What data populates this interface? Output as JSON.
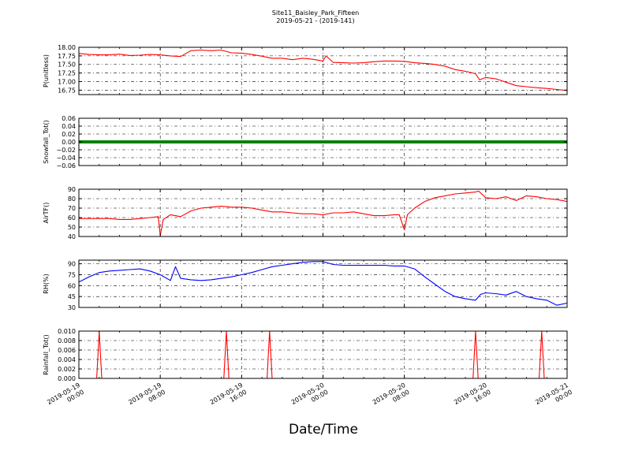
{
  "header": {
    "title": "Site11_Baisley_Park_Fifteen",
    "subtitle": "2019-05-21 - (2019-141)"
  },
  "xaxis": {
    "label": "Date/Time",
    "ticks": [
      [
        "2019-05-19",
        "00:00"
      ],
      [
        "2019-05-19",
        "08:00"
      ],
      [
        "2019-05-19",
        "16:00"
      ],
      [
        "2019-05-20",
        "00:00"
      ],
      [
        "2019-05-20",
        "08:00"
      ],
      [
        "2019-05-20",
        "16:00"
      ],
      [
        "2019-05-21",
        "00:00"
      ]
    ]
  },
  "chart_data": [
    {
      "type": "line",
      "ylabel": "P(unitless)",
      "color": "#ff0000",
      "ylim": [
        16.62,
        18.0
      ],
      "yticks": [
        "18.00",
        "17.75",
        "17.50",
        "17.25",
        "17.00",
        "16.75"
      ],
      "ytick_values": [
        18.0,
        17.75,
        17.5,
        17.25,
        17.0,
        16.75
      ],
      "grid": true,
      "x_hours": [
        0,
        1,
        2,
        3,
        4,
        5,
        6,
        7,
        8,
        9,
        10,
        11,
        12,
        13,
        14,
        15,
        16,
        17,
        18,
        19,
        20,
        21,
        22,
        23,
        24,
        24.3,
        25,
        26,
        27,
        28,
        29,
        30,
        31,
        32,
        33,
        34,
        35,
        36,
        37,
        38,
        39,
        39.4,
        40,
        41,
        42,
        43,
        44,
        45,
        46,
        47,
        48
      ],
      "values": [
        17.82,
        17.79,
        17.78,
        17.78,
        17.8,
        17.76,
        17.77,
        17.79,
        17.78,
        17.75,
        17.73,
        17.9,
        17.92,
        17.9,
        17.92,
        17.84,
        17.83,
        17.79,
        17.74,
        17.68,
        17.68,
        17.64,
        17.68,
        17.65,
        17.6,
        17.75,
        17.56,
        17.55,
        17.54,
        17.55,
        17.58,
        17.6,
        17.6,
        17.59,
        17.55,
        17.53,
        17.5,
        17.45,
        17.35,
        17.3,
        17.23,
        17.05,
        17.12,
        17.08,
        16.98,
        16.88,
        16.85,
        16.82,
        16.8,
        16.77,
        16.74
      ]
    },
    {
      "type": "line",
      "ylabel": "Snowfall_Tot()",
      "color": "#008000",
      "ylim": [
        -0.06,
        0.06
      ],
      "yticks": [
        "0.06",
        "0.04",
        "0.02",
        "0.00",
        "−0.02",
        "−0.04",
        "−0.06"
      ],
      "ytick_values": [
        0.06,
        0.04,
        0.02,
        0.0,
        -0.02,
        -0.04,
        -0.06
      ],
      "grid": true,
      "x_hours": [
        0,
        48
      ],
      "values": [
        0,
        0
      ]
    },
    {
      "type": "line",
      "ylabel": "AirTF()",
      "color": "#ff0000",
      "ylim": [
        40,
        90
      ],
      "yticks": [
        "90",
        "80",
        "70",
        "60",
        "50",
        "40"
      ],
      "ytick_values": [
        90,
        80,
        70,
        60,
        50,
        40
      ],
      "grid": true,
      "x_hours": [
        0,
        1,
        2,
        3,
        4,
        5,
        6,
        7,
        7.8,
        8.0,
        8.3,
        9,
        10,
        11,
        12,
        13,
        14,
        15,
        16,
        17,
        18,
        19,
        20,
        21,
        22,
        23,
        24,
        25,
        26,
        27,
        28,
        29,
        30,
        31,
        31.5,
        32,
        32.3,
        33,
        34,
        35,
        36,
        37,
        38,
        39,
        39.3,
        40,
        41,
        42,
        43,
        44,
        45,
        46,
        47,
        48
      ],
      "values": [
        59,
        59,
        59,
        59,
        58,
        58,
        59,
        60,
        61,
        41,
        58,
        63,
        61,
        67,
        70,
        71,
        72,
        71,
        71,
        70,
        68,
        66,
        66,
        65,
        64,
        64,
        63,
        65,
        65,
        66,
        64,
        62,
        62,
        63,
        63,
        47,
        63,
        70,
        77,
        81,
        83,
        85,
        86,
        87,
        88,
        81,
        80,
        82,
        78,
        83,
        82,
        80,
        79,
        77
      ]
    },
    {
      "type": "line",
      "ylabel": "RH(%)",
      "color": "#0000ff",
      "ylim": [
        30,
        95
      ],
      "yticks": [
        "90",
        "75",
        "60",
        "45",
        "30"
      ],
      "ytick_values": [
        90,
        75,
        60,
        45,
        30
      ],
      "grid": true,
      "x_hours": [
        0,
        1,
        2,
        3,
        4,
        5,
        6,
        7,
        8,
        9,
        9.5,
        10,
        11,
        12,
        13,
        14,
        15,
        16,
        17,
        18,
        19,
        20,
        21,
        22,
        23,
        24,
        25,
        26,
        27,
        28,
        29,
        30,
        31,
        32,
        33,
        34,
        35,
        36,
        37,
        38,
        39,
        39.5,
        40,
        41,
        42,
        43,
        44,
        45,
        46,
        47,
        48
      ],
      "values": [
        65,
        72,
        78,
        80,
        81,
        82,
        83,
        80,
        75,
        67,
        86,
        70,
        68,
        67,
        68,
        70,
        72,
        75,
        78,
        82,
        86,
        88,
        90,
        92,
        93,
        93,
        89,
        88,
        88,
        88,
        88,
        88,
        87,
        87,
        83,
        72,
        62,
        52,
        45,
        42,
        40,
        48,
        50,
        49,
        47,
        52,
        45,
        42,
        40,
        33,
        36
      ]
    },
    {
      "type": "line",
      "ylabel": "Rainfall_Tot()",
      "color": "#ff0000",
      "ylim": [
        0,
        0.01
      ],
      "yticks": [
        "0.010",
        "0.008",
        "0.006",
        "0.004",
        "0.002",
        "0.000"
      ],
      "ytick_values": [
        0.01,
        0.008,
        0.006,
        0.004,
        0.002,
        0.0
      ],
      "grid": true,
      "x_hours": [
        0,
        1.75,
        2.0,
        2.25,
        14.25,
        14.5,
        14.75,
        18.5,
        18.75,
        19.0,
        38.75,
        39.0,
        39.25,
        45.25,
        45.5,
        45.75,
        48
      ],
      "values": [
        0,
        0,
        0.01,
        0,
        0,
        0.01,
        0,
        0,
        0.01,
        0,
        0,
        0.01,
        0,
        0,
        0.01,
        0,
        0
      ]
    }
  ]
}
